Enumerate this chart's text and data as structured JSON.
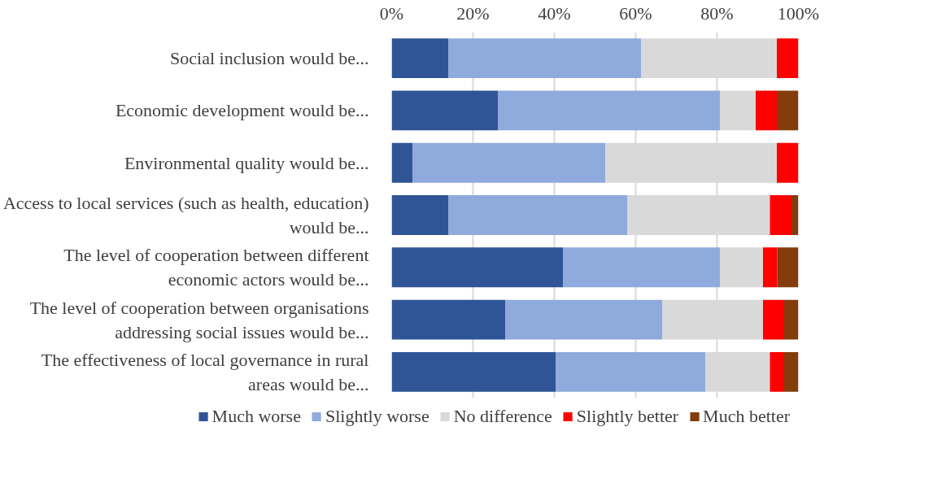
{
  "chart_data": {
    "type": "bar",
    "orientation": "horizontal",
    "stacked": true,
    "categories": [
      "Social inclusion would be...",
      "Economic development would be...",
      "Environmental quality would be...",
      "Access to local services (such as health, education)\nwould be...",
      "The level of cooperation between different\neconomic actors would be...",
      "The level of cooperation between organisations\naddressing social issues would be...",
      "The effectiveness of local governance in rural\nareas would be..."
    ],
    "series": [
      {
        "name": "Much worse",
        "color": "#2f5597",
        "values": [
          14.0,
          26.2,
          5.1,
          14.0,
          42.1,
          28.0,
          40.3
        ]
      },
      {
        "name": "Slightly worse",
        "color": "#8faadc",
        "values": [
          47.3,
          54.5,
          47.4,
          43.9,
          38.6,
          38.6,
          36.8
        ]
      },
      {
        "name": "No difference",
        "color": "#d9d9d9",
        "values": [
          33.4,
          8.8,
          42.2,
          35.1,
          10.6,
          24.7,
          15.9
        ]
      },
      {
        "name": "Slightly better",
        "color": "#ff0000",
        "values": [
          5.3,
          5.2,
          5.3,
          5.3,
          3.5,
          5.2,
          3.5
        ]
      },
      {
        "name": "Much better",
        "color": "#843c0c",
        "values": [
          0,
          5.3,
          0,
          1.7,
          5.2,
          3.5,
          3.5
        ]
      }
    ],
    "xlim": [
      0,
      100
    ],
    "xticks": [
      {
        "value": 0,
        "label": "0%"
      },
      {
        "value": 20,
        "label": "20%"
      },
      {
        "value": 40,
        "label": "40%"
      },
      {
        "value": 60,
        "label": "60%"
      },
      {
        "value": 80,
        "label": "80%"
      },
      {
        "value": 100,
        "label": "100%"
      }
    ],
    "grid": "x",
    "legend": "bottom"
  }
}
